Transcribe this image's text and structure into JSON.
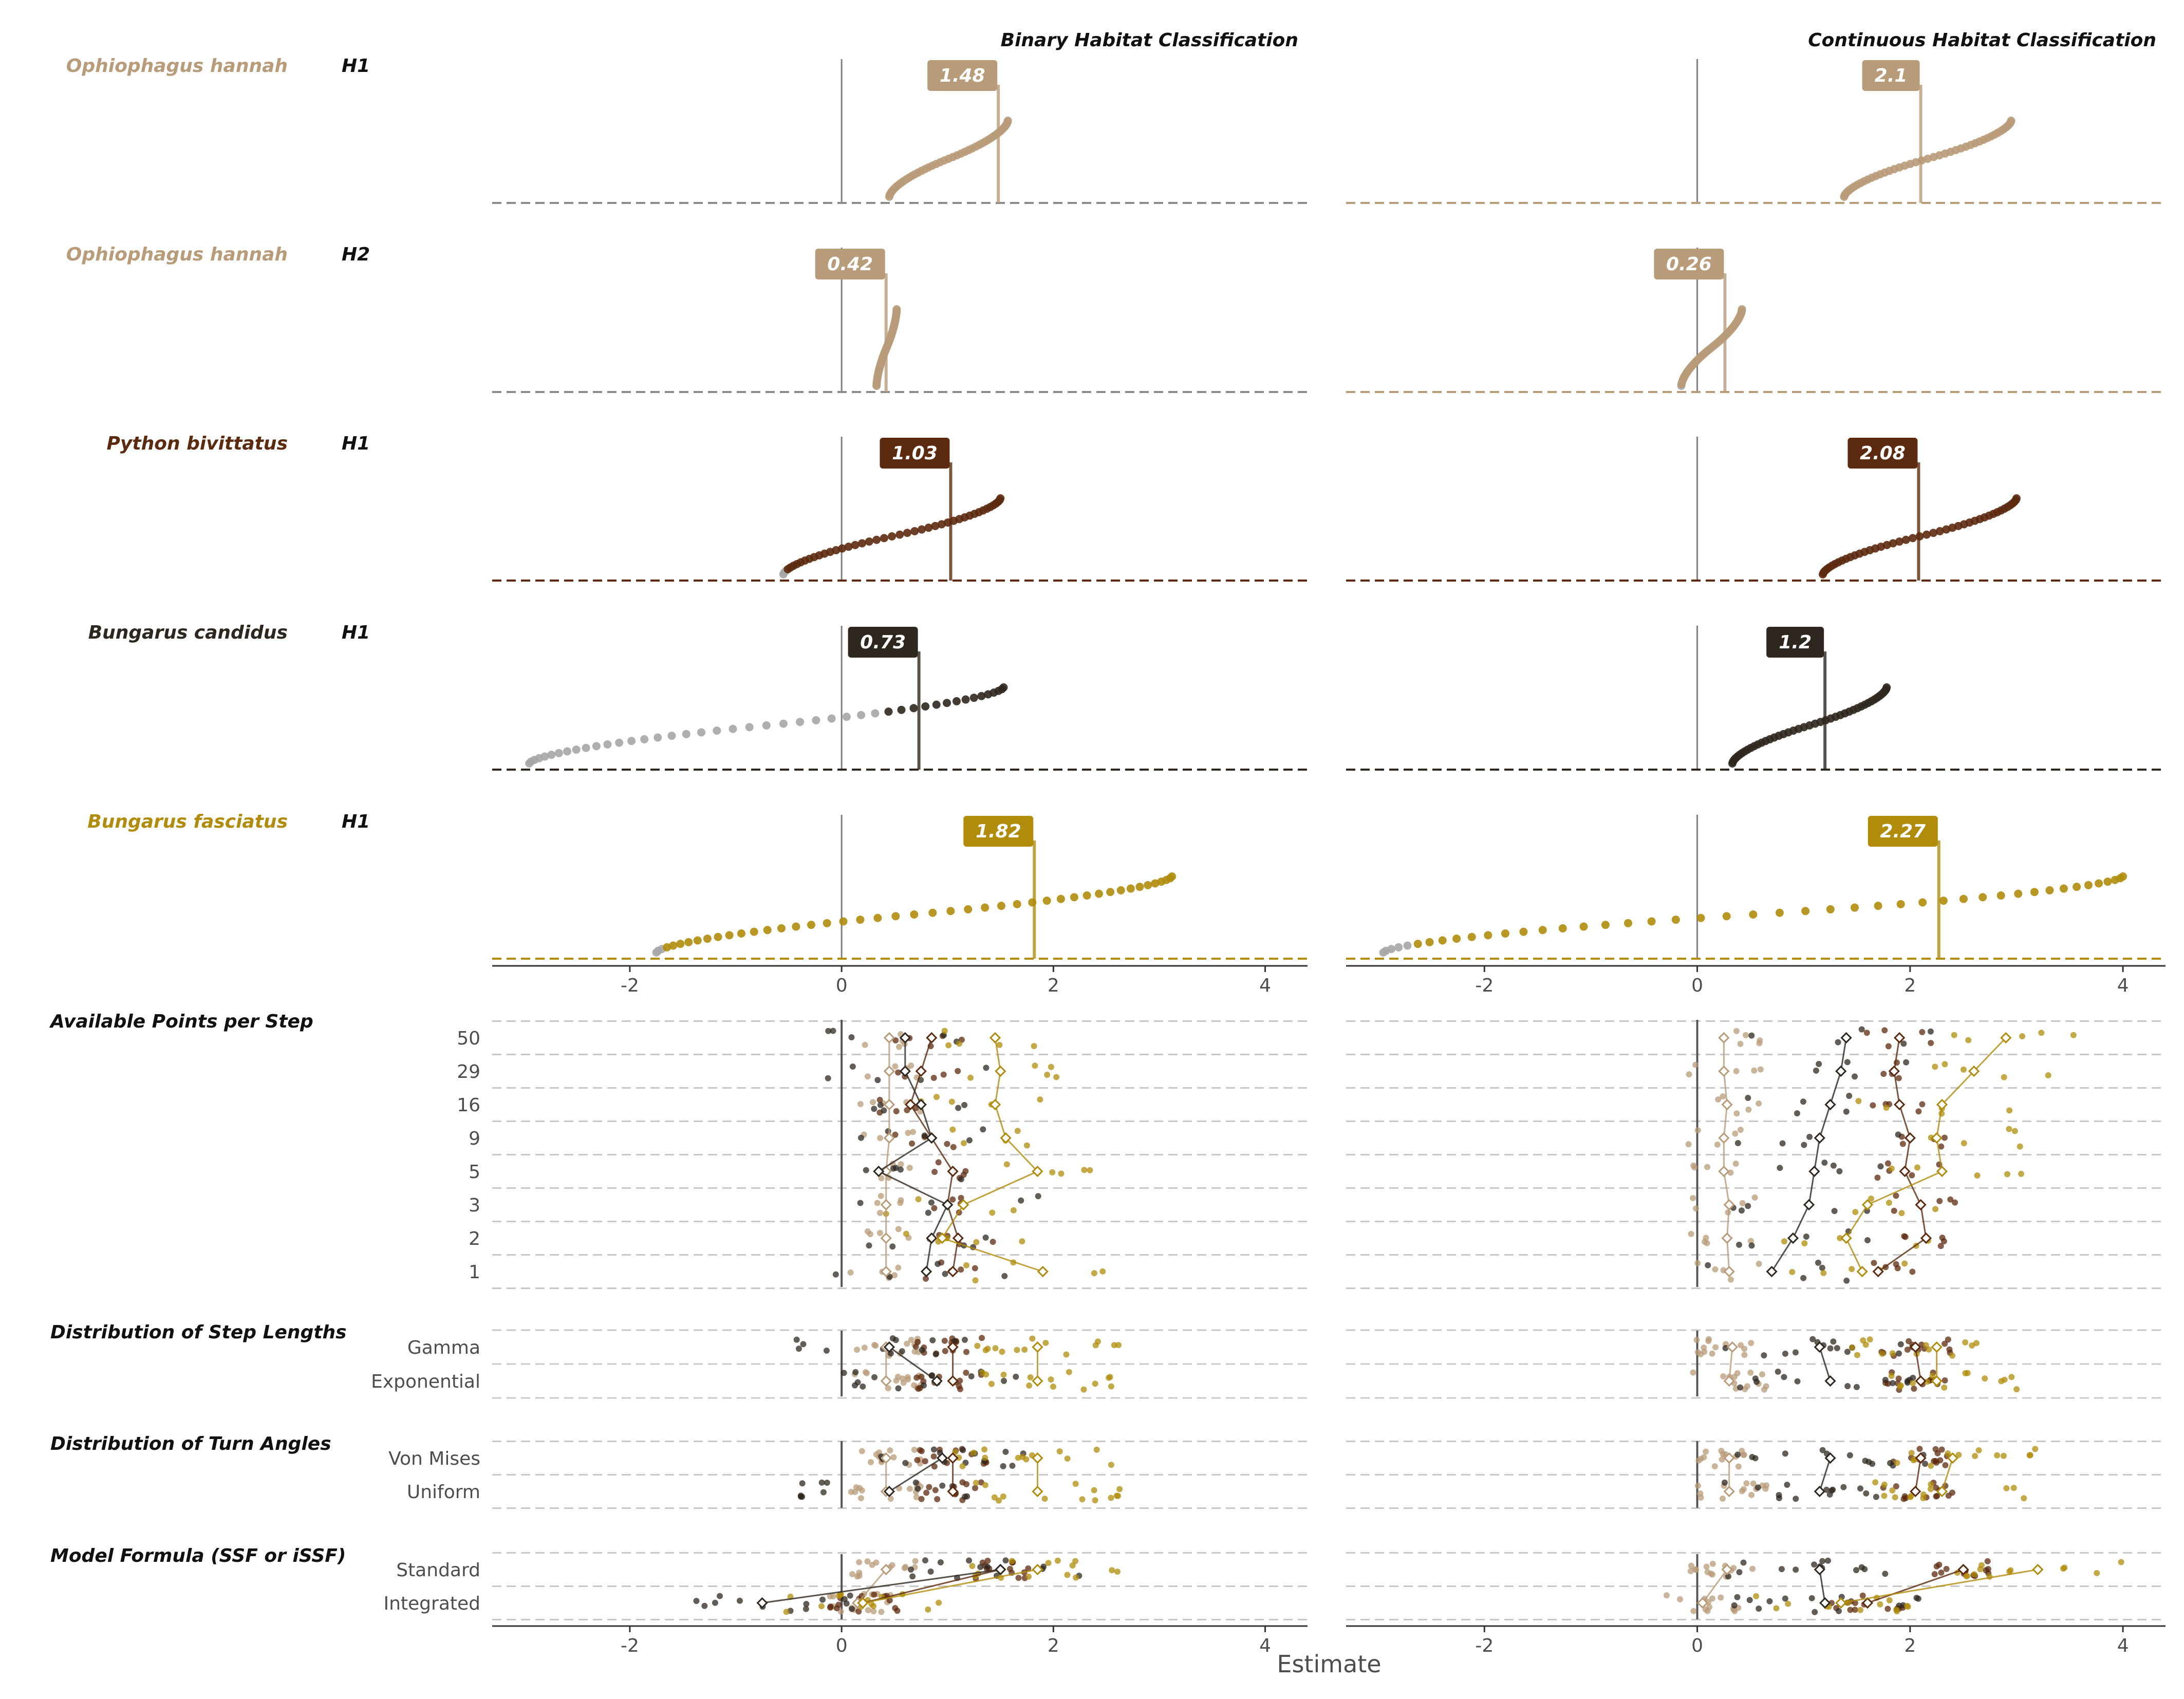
{
  "chart_data": {
    "type": "scatter",
    "facets": [
      "Binary Habitat Classification",
      "Continuous Habitat Classification"
    ],
    "x_axis_title": "Estimate",
    "xlim": [
      -3.3,
      4.4
    ],
    "x_ticks": [
      -2,
      0,
      2,
      4
    ],
    "x_tick_labels": [
      "-2",
      "0",
      "2",
      "4"
    ],
    "species_colors": {
      "Ophiophagus hannah": "#B89B78",
      "Python bivittatus": "#5C2A0E",
      "Bungarus candidus": "#2E271F",
      "Bungarus fasciatus": "#B08C0A",
      "non_significant": "#A6A6A6"
    },
    "curves": [
      {
        "species": "Ophiophagus hannah",
        "hypothesis": "H1",
        "labels": [
          "1.48",
          "2.1"
        ],
        "medians": [
          1.48,
          2.1
        ],
        "binary": {
          "min": 0.45,
          "max": 1.57,
          "n_nonsig": 0,
          "nonsig_max": 0
        },
        "continuous": {
          "min": 1.38,
          "max": 2.95,
          "n_nonsig": 0,
          "nonsig_max": 0
        }
      },
      {
        "species": "Ophiophagus hannah",
        "hypothesis": "H2",
        "labels": [
          "0.42",
          "0.26"
        ],
        "medians": [
          0.42,
          0.26
        ],
        "binary": {
          "min": 0.33,
          "max": 0.52,
          "n_nonsig": 0,
          "nonsig_max": 0
        },
        "continuous": {
          "min": -0.15,
          "max": 0.42,
          "n_nonsig": 1,
          "nonsig_max": -0.15
        }
      },
      {
        "species": "Python bivittatus",
        "hypothesis": "H1",
        "labels": [
          "1.03",
          "2.08"
        ],
        "medians": [
          1.03,
          2.08
        ],
        "binary": {
          "min": -0.55,
          "max": 1.5,
          "n_nonsig": 3,
          "nonsig_max": -0.05
        },
        "continuous": {
          "min": 1.18,
          "max": 3.0,
          "n_nonsig": 0,
          "nonsig_max": 0
        }
      },
      {
        "species": "Bungarus candidus",
        "hypothesis": "H1",
        "labels": [
          "0.73",
          "1.2"
        ],
        "medians": [
          0.73,
          1.2
        ],
        "binary": {
          "min": -2.95,
          "max": 1.53,
          "n_nonsig": 30,
          "nonsig_max": -0.05
        },
        "continuous": {
          "min": 0.33,
          "max": 1.78,
          "n_nonsig": 0,
          "nonsig_max": 0
        }
      },
      {
        "species": "Bungarus fasciatus",
        "hypothesis": "H1",
        "labels": [
          "1.82",
          "2.27"
        ],
        "medians": [
          1.82,
          2.27
        ],
        "binary": {
          "min": -1.75,
          "max": 3.12,
          "n_nonsig": 3,
          "nonsig_max": -0.2
        },
        "continuous": {
          "min": -2.95,
          "max": 4.0,
          "n_nonsig": 5,
          "nonsig_max": -0.75
        }
      }
    ],
    "factors": [
      {
        "title": "Available Points per Step",
        "levels": [
          "50",
          "29",
          "16",
          "9",
          "5",
          "3",
          "2",
          "1"
        ],
        "means_binary": [
          [
            0.45,
            0.45,
            0.45,
            0.45,
            0.42,
            0.42,
            0.42,
            0.42
          ],
          [
            0.85,
            0.75,
            0.65,
            0.85,
            1.05,
            1.0,
            1.1,
            1.05
          ],
          [
            0.6,
            0.6,
            0.75,
            0.85,
            0.35,
            1.0,
            0.85,
            0.8
          ],
          [
            1.45,
            1.5,
            1.45,
            1.55,
            1.85,
            1.15,
            0.95,
            1.9
          ]
        ],
        "means_continuous": [
          [
            0.25,
            0.25,
            0.28,
            0.25,
            0.25,
            0.3,
            0.28,
            0.3
          ],
          [
            1.9,
            1.85,
            1.9,
            2.0,
            1.95,
            2.1,
            2.15,
            1.7
          ],
          [
            1.4,
            1.35,
            1.25,
            1.15,
            1.1,
            1.05,
            0.9,
            0.7
          ],
          [
            2.9,
            2.6,
            2.3,
            2.25,
            2.3,
            1.6,
            1.4,
            1.55
          ]
        ]
      },
      {
        "title": "Distribution of Step Lengths",
        "levels": [
          "Gamma",
          "Exponential"
        ],
        "means_binary": [
          [
            0.42,
            0.42
          ],
          [
            1.05,
            1.05
          ],
          [
            0.45,
            0.9
          ],
          [
            1.85,
            1.85
          ]
        ],
        "means_continuous": [
          [
            0.33,
            0.3
          ],
          [
            2.05,
            2.1
          ],
          [
            1.15,
            1.25
          ],
          [
            2.25,
            2.25
          ]
        ]
      },
      {
        "title": "Distribution of Turn Angles",
        "levels": [
          "Von Mises",
          "Uniform"
        ],
        "means_binary": [
          [
            0.42,
            0.42
          ],
          [
            1.05,
            1.05
          ],
          [
            0.95,
            0.45
          ],
          [
            1.85,
            1.85
          ]
        ],
        "means_continuous": [
          [
            0.3,
            0.3
          ],
          [
            2.1,
            2.05
          ],
          [
            1.25,
            1.15
          ],
          [
            2.4,
            2.3
          ]
        ]
      },
      {
        "title": "Model Formula (SSF or iSSF)",
        "levels": [
          "Standard",
          "Integrated"
        ],
        "means_binary": [
          [
            0.42,
            0.15
          ],
          [
            1.5,
            0.2
          ],
          [
            1.5,
            -0.75
          ],
          [
            1.85,
            0.2
          ]
        ],
        "means_continuous": [
          [
            0.28,
            0.05
          ],
          [
            2.5,
            1.6
          ],
          [
            1.15,
            1.2
          ],
          [
            3.2,
            1.35
          ]
        ]
      }
    ]
  }
}
